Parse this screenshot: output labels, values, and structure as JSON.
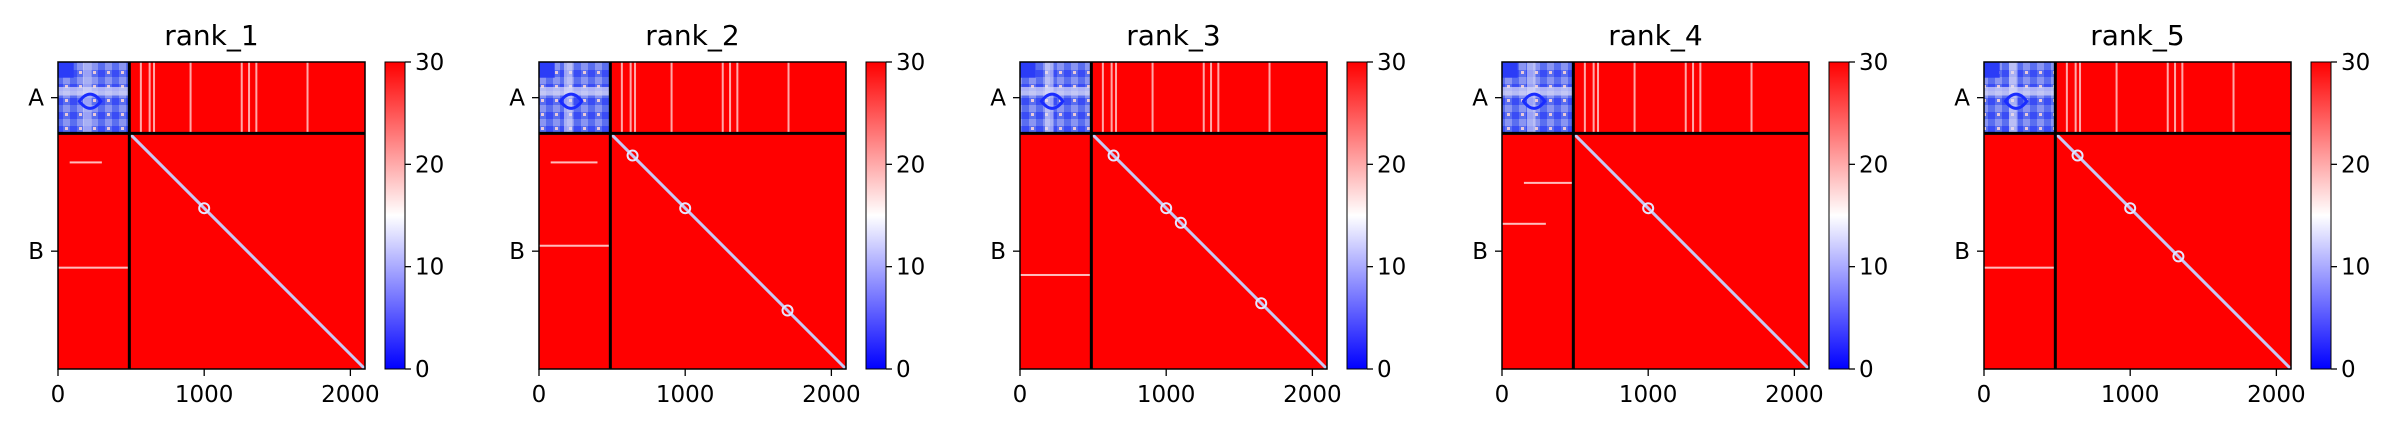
{
  "chart_data": [
    {
      "type": "heatmap",
      "title": "rank_1",
      "xlabel": "",
      "ylabel": "",
      "x_ticks": [
        0,
        1000,
        2000
      ],
      "x_tick_labels": [
        "0",
        "1000",
        "2000"
      ],
      "xlim": [
        0,
        2100
      ],
      "chain_boundary": 488,
      "y_labels": [
        "A",
        "B"
      ],
      "colorbar": {
        "min": 0,
        "max": 30,
        "ticks": [
          0,
          10,
          20,
          30
        ],
        "tick_labels": [
          "0",
          "10",
          "20",
          "30"
        ],
        "colormap": "bwr"
      },
      "streaks": [
        {
          "y": 680,
          "x0": 80,
          "x1": 300
        },
        {
          "y": 1400,
          "x0": 0,
          "x1": 488
        }
      ],
      "spots": [
        1000
      ]
    },
    {
      "type": "heatmap",
      "title": "rank_2",
      "xlabel": "",
      "ylabel": "",
      "x_ticks": [
        0,
        1000,
        2000
      ],
      "x_tick_labels": [
        "0",
        "1000",
        "2000"
      ],
      "xlim": [
        0,
        2100
      ],
      "chain_boundary": 488,
      "y_labels": [
        "A",
        "B"
      ],
      "colorbar": {
        "min": 0,
        "max": 30,
        "ticks": [
          0,
          10,
          20,
          30
        ],
        "tick_labels": [
          "0",
          "10",
          "20",
          "30"
        ],
        "colormap": "bwr"
      },
      "streaks": [
        {
          "y": 680,
          "x0": 80,
          "x1": 400
        },
        {
          "y": 1250,
          "x0": 0,
          "x1": 488
        }
      ],
      "spots": [
        640,
        1000,
        1700
      ]
    },
    {
      "type": "heatmap",
      "title": "rank_3",
      "xlabel": "",
      "ylabel": "",
      "x_ticks": [
        0,
        1000,
        2000
      ],
      "x_tick_labels": [
        "0",
        "1000",
        "2000"
      ],
      "xlim": [
        0,
        2100
      ],
      "chain_boundary": 488,
      "y_labels": [
        "A",
        "B"
      ],
      "colorbar": {
        "min": 0,
        "max": 30,
        "ticks": [
          0,
          10,
          20,
          30
        ],
        "tick_labels": [
          "0",
          "10",
          "20",
          "30"
        ],
        "colormap": "bwr"
      },
      "streaks": [
        {
          "y": 1450,
          "x0": 0,
          "x1": 488
        }
      ],
      "spots": [
        640,
        1000,
        1100,
        1650
      ]
    },
    {
      "type": "heatmap",
      "title": "rank_4",
      "xlabel": "",
      "ylabel": "",
      "x_ticks": [
        0,
        1000,
        2000
      ],
      "x_tick_labels": [
        "0",
        "1000",
        "2000"
      ],
      "xlim": [
        0,
        2100
      ],
      "chain_boundary": 488,
      "y_labels": [
        "A",
        "B"
      ],
      "colorbar": {
        "min": 0,
        "max": 30,
        "ticks": [
          0,
          10,
          20,
          30
        ],
        "tick_labels": [
          "0",
          "10",
          "20",
          "30"
        ],
        "colormap": "bwr"
      },
      "streaks": [
        {
          "y": 820,
          "x0": 150,
          "x1": 488
        },
        {
          "y": 1100,
          "x0": 0,
          "x1": 300
        }
      ],
      "spots": [
        1000
      ]
    },
    {
      "type": "heatmap",
      "title": "rank_5",
      "xlabel": "",
      "ylabel": "",
      "x_ticks": [
        0,
        1000,
        2000
      ],
      "x_tick_labels": [
        "0",
        "1000",
        "2000"
      ],
      "xlim": [
        0,
        2100
      ],
      "chain_boundary": 488,
      "y_labels": [
        "A",
        "B"
      ],
      "colorbar": {
        "min": 0,
        "max": 30,
        "ticks": [
          0,
          10,
          20,
          30
        ],
        "tick_labels": [
          "0",
          "10",
          "20",
          "30"
        ],
        "colormap": "bwr"
      },
      "streaks": [
        {
          "y": 1400,
          "x0": 0,
          "x1": 488
        }
      ],
      "spots": [
        640,
        1000,
        1330
      ]
    }
  ]
}
